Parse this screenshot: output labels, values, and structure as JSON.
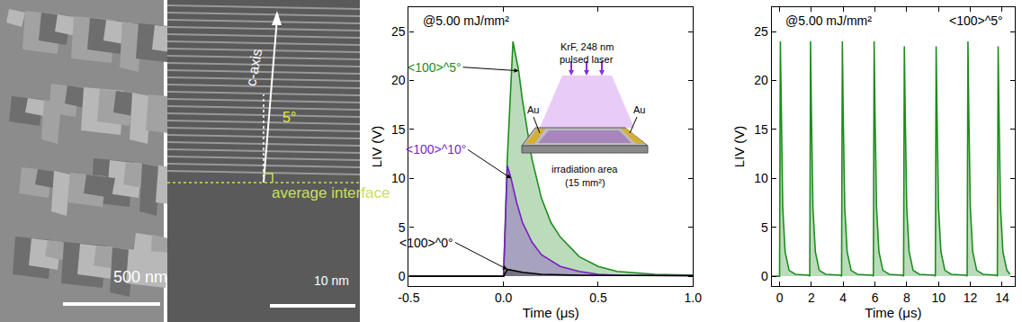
{
  "images": [
    {
      "scale_bar": "500 nm"
    },
    {
      "scale_bar": "10 nm",
      "labels": [
        "c-axis",
        "5°",
        "average interface"
      ]
    }
  ],
  "chart_data": [
    {
      "type": "line",
      "x_label": "Time (μs)",
      "y_label": "LIV (V)",
      "annotations": [
        "@5.00 mJ/mm²"
      ],
      "inset_labels": [
        "KrF, 248 nm",
        "pulsed laser",
        "Au",
        "Au",
        "irradiation area",
        "(15 mm²)"
      ],
      "xlim": [
        -0.5,
        1.0
      ],
      "xticks": [
        -0.5,
        {
          "value": 0,
          "label": "0.0"
        },
        0.5,
        {
          "value": 1,
          "label": "1.0"
        }
      ],
      "ylim": [
        -1,
        27.5
      ],
      "yticks": [
        0,
        5,
        10,
        15,
        20,
        25
      ],
      "grid": false,
      "series": [
        {
          "name": "<100>^5°",
          "color": "#1e8c1e",
          "type": "area",
          "x": [
            -0.5,
            0,
            0.02,
            0.05,
            0.08,
            0.1,
            0.15,
            0.2,
            0.25,
            0.3,
            0.4,
            0.5,
            0.6,
            0.8,
            1.0
          ],
          "values": [
            0,
            0,
            12,
            24,
            21,
            18,
            12,
            8,
            5.5,
            4,
            2,
            1,
            0.5,
            0.2,
            0.1
          ]
        },
        {
          "name": "<100>^10°",
          "color": "#7a1fc2",
          "type": "area",
          "x": [
            -0.5,
            0,
            0.02,
            0.04,
            0.07,
            0.1,
            0.15,
            0.2,
            0.3,
            0.4,
            0.5,
            0.6,
            1.0
          ],
          "values": [
            0,
            0,
            11.3,
            10,
            7.5,
            5.5,
            3.5,
            2.2,
            1,
            0.5,
            0.2,
            0.1,
            0.05
          ]
        },
        {
          "name": "<100>^0°",
          "color": "#000000",
          "type": "area",
          "x": [
            -0.5,
            0,
            0.02,
            0.05,
            0.1,
            0.2,
            0.4,
            1.0
          ],
          "values": [
            0,
            0,
            0.7,
            0.6,
            0.4,
            0.2,
            0.1,
            0.05
          ]
        }
      ]
    },
    {
      "type": "line",
      "x_label": "Time (μs)",
      "y_label": "LIV (V)",
      "annotations": [
        "@5.00 mJ/mm²"
      ],
      "xlim": [
        -0.5,
        14.8
      ],
      "xticks": [
        0,
        2,
        4,
        6,
        8,
        10,
        12,
        14
      ],
      "ylim": [
        -1,
        27.5
      ],
      "yticks": [
        0,
        5,
        10,
        15,
        20,
        25
      ],
      "grid": false,
      "series": [
        {
          "name": "<100>^5°",
          "color": "#1e8c1e",
          "type": "area",
          "x": [
            -0.5,
            0,
            0.05,
            0.1,
            0.2,
            0.35,
            0.6,
            1.0,
            1.85,
            1.9,
            1.95,
            2.0,
            2.1,
            2.25,
            2.5,
            2.9,
            3.85,
            3.9,
            3.95,
            4.0,
            4.1,
            4.25,
            4.5,
            4.9,
            5.85,
            5.9,
            5.95,
            6.0,
            6.1,
            6.25,
            6.5,
            6.9,
            7.75,
            7.8,
            7.85,
            7.9,
            8.0,
            8.15,
            8.4,
            8.8,
            9.75,
            9.8,
            9.85,
            9.9,
            10.0,
            10.15,
            10.4,
            10.8,
            11.75,
            11.8,
            11.85,
            11.9,
            12.0,
            12.15,
            12.4,
            12.8,
            13.65,
            13.7,
            13.75,
            13.8,
            13.9,
            14.05,
            14.3,
            14.5
          ],
          "values": [
            0,
            0,
            24,
            17,
            7,
            2.5,
            0.6,
            0.2,
            0.1,
            0,
            24,
            17,
            7,
            2.5,
            0.6,
            0.2,
            0.1,
            0,
            24,
            17,
            7,
            2.5,
            0.6,
            0.2,
            0.1,
            0,
            24,
            17,
            7,
            2.5,
            0.6,
            0.2,
            0.1,
            0,
            23.5,
            17,
            7,
            2.5,
            0.6,
            0.2,
            0.1,
            0,
            23.5,
            17,
            7,
            2.5,
            0.6,
            0.2,
            0.1,
            0,
            24,
            17,
            7,
            2.5,
            0.6,
            0.2,
            0.1,
            0,
            23.5,
            17,
            7,
            2.5,
            0.6,
            0.2
          ]
        }
      ]
    }
  ]
}
